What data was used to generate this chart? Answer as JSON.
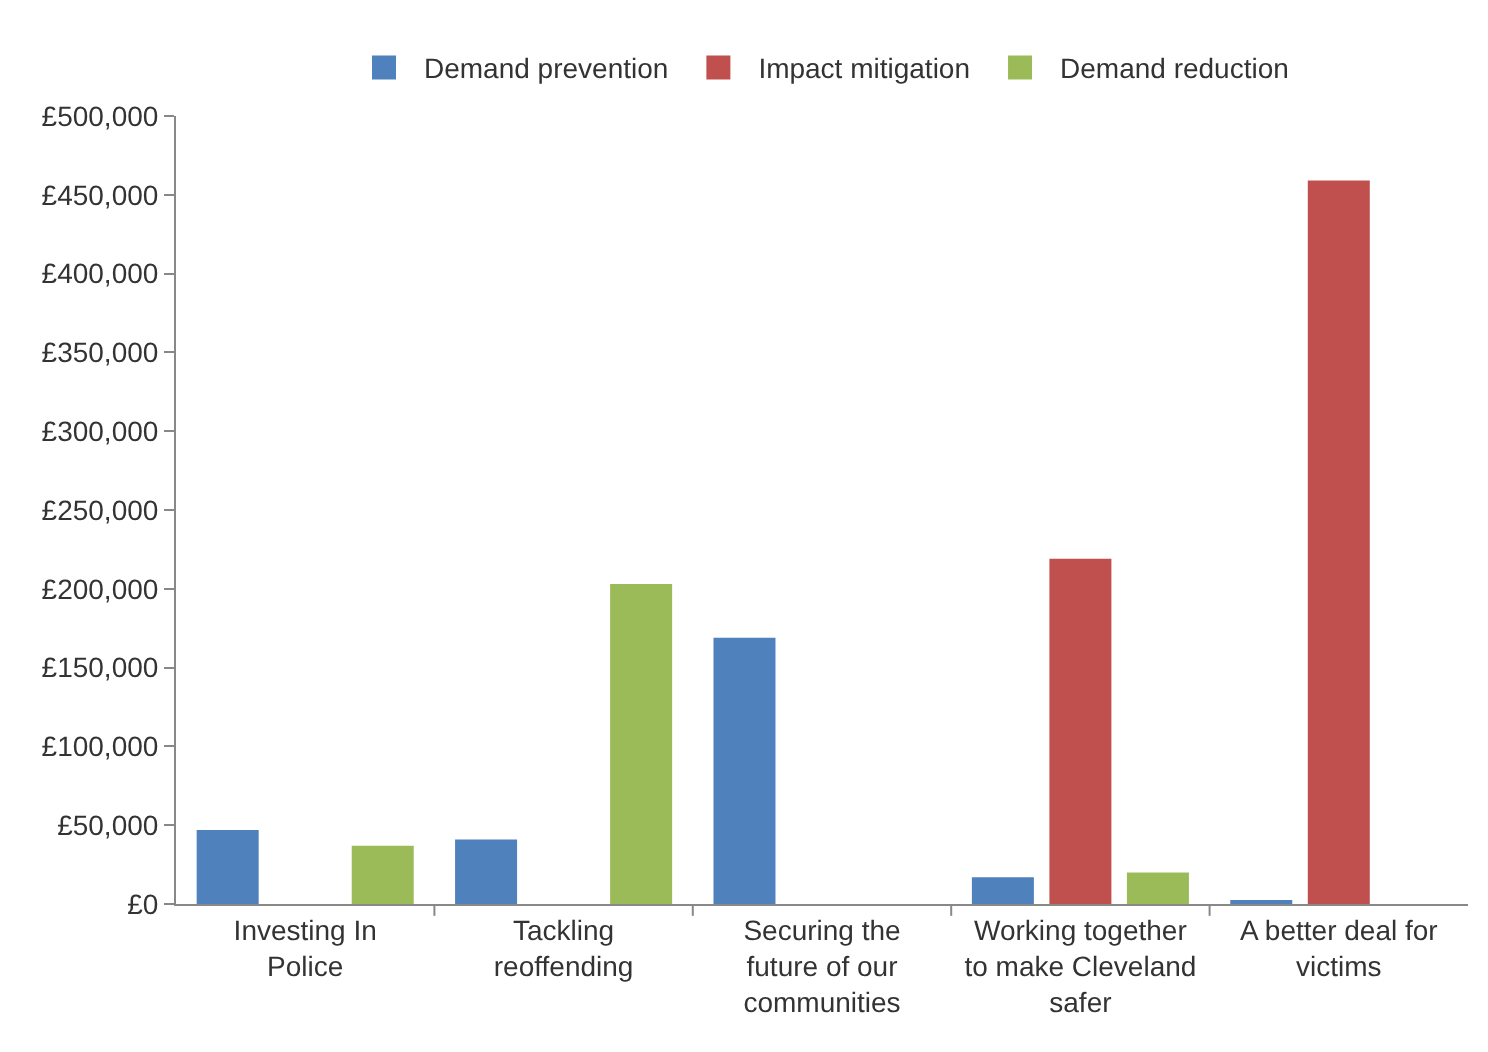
{
  "chart_data": {
    "type": "bar",
    "categories": [
      "Investing In Police",
      "Tackling reoffending",
      "Securing the future of our communities",
      "Working together to make Cleveland safer",
      "A better deal for victims"
    ],
    "series": [
      {
        "name": "Demand prevention",
        "color": "#4f81bd",
        "values": [
          47000,
          41000,
          169000,
          17000,
          2000
        ]
      },
      {
        "name": "Impact mitigation",
        "color": "#c0504d",
        "values": [
          null,
          null,
          null,
          219000,
          459000
        ]
      },
      {
        "name": "Demand reduction",
        "color": "#9bbb59",
        "values": [
          37000,
          203000,
          null,
          20000,
          null
        ]
      }
    ],
    "ylim": [
      0,
      500000
    ],
    "yticks": [
      {
        "value": 0,
        "label": "£0"
      },
      {
        "value": 50000,
        "label": "£50,000"
      },
      {
        "value": 100000,
        "label": "£100,000"
      },
      {
        "value": 150000,
        "label": "£150,000"
      },
      {
        "value": 200000,
        "label": "£200,000"
      },
      {
        "value": 250000,
        "label": "£250,000"
      },
      {
        "value": 300000,
        "label": "£300,000"
      },
      {
        "value": 350000,
        "label": "£350,000"
      },
      {
        "value": 400000,
        "label": "£400,000"
      },
      {
        "value": 450000,
        "label": "£450,000"
      },
      {
        "value": 500000,
        "label": "£500,000"
      }
    ],
    "grid": false,
    "legend": "top"
  }
}
